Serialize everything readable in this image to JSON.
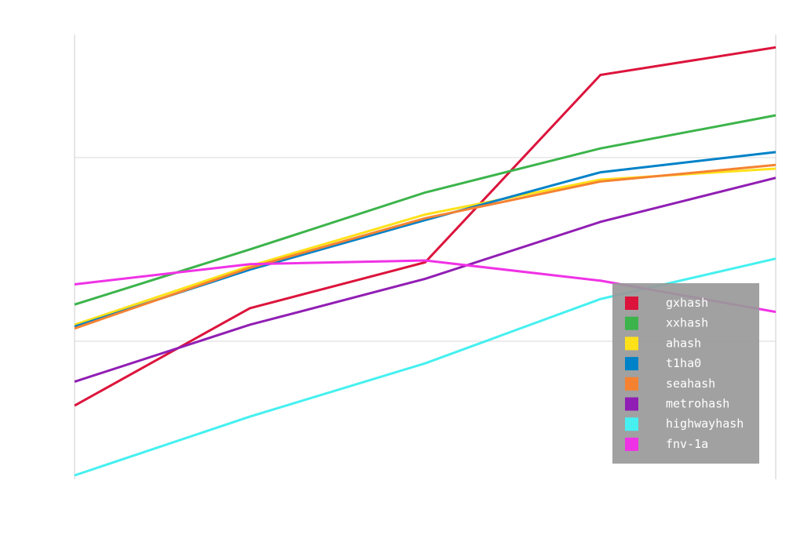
{
  "chart_data": {
    "type": "line",
    "title": "",
    "xlabel": "",
    "ylabel": "",
    "x": [
      0,
      1,
      2,
      3,
      4
    ],
    "xlim": [
      0,
      4
    ],
    "ylim": [
      0,
      2.4
    ],
    "gridlines_y": [
      0.73,
      1.73
    ],
    "legend_placement": "bottom-right",
    "series": [
      {
        "name": "gxhash",
        "color": "#dc143c",
        "values": [
          0.38,
          0.91,
          1.16,
          2.18,
          2.33
        ]
      },
      {
        "name": "xxhash",
        "color": "#3cb44b",
        "values": [
          0.93,
          1.23,
          1.54,
          1.78,
          1.96
        ]
      },
      {
        "name": "ahash",
        "color": "#ffe119",
        "values": [
          0.82,
          1.14,
          1.42,
          1.61,
          1.67
        ]
      },
      {
        "name": "t1ha0",
        "color": "#0082c8",
        "values": [
          0.81,
          1.12,
          1.39,
          1.65,
          1.76
        ]
      },
      {
        "name": "seahash",
        "color": "#f58231",
        "values": [
          0.8,
          1.13,
          1.4,
          1.6,
          1.69
        ]
      },
      {
        "name": "metrohash",
        "color": "#911eb4",
        "values": [
          0.51,
          0.82,
          1.07,
          1.38,
          1.62
        ]
      },
      {
        "name": "highwayhash",
        "color": "#46f0f0",
        "values": [
          0.0,
          0.32,
          0.61,
          0.96,
          1.18
        ]
      },
      {
        "name": "fnv-1a",
        "color": "#f032e6",
        "values": [
          1.04,
          1.15,
          1.17,
          1.06,
          0.89
        ]
      }
    ]
  }
}
